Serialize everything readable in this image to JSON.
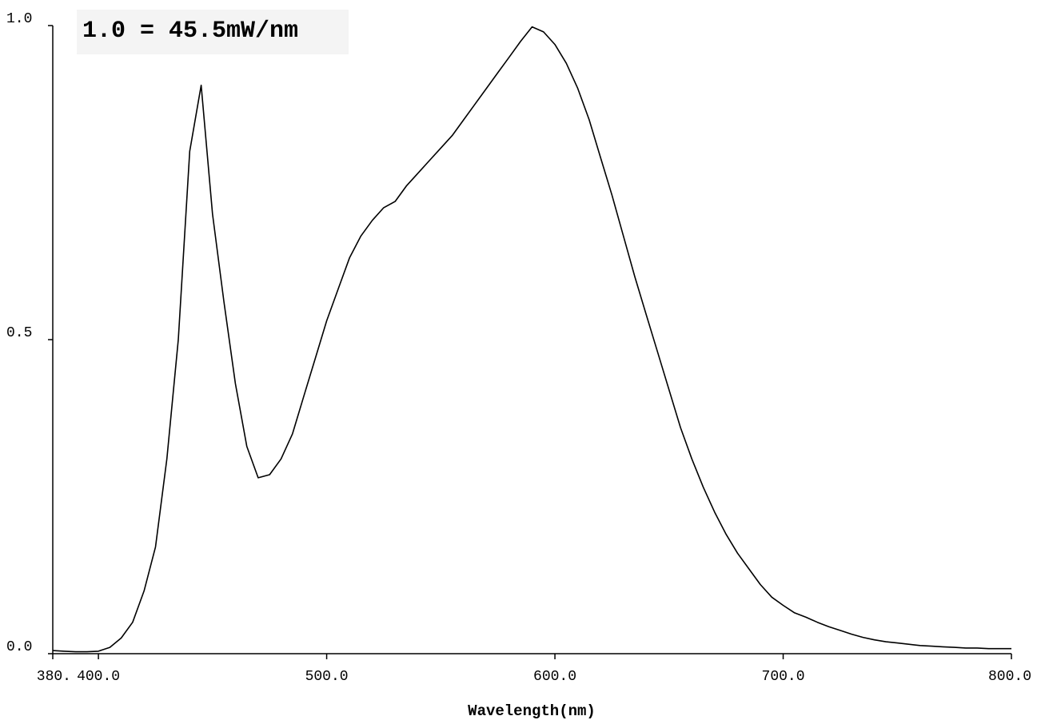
{
  "chart_data": {
    "type": "line",
    "title": "1.0 = 45.5mW/nm",
    "xlabel": "Wavelength(nm)",
    "ylabel": "",
    "xlim": [
      380,
      800
    ],
    "ylim": [
      0,
      1.0
    ],
    "grid": false,
    "x_ticks": [
      {
        "value": 380,
        "label": "380."
      },
      {
        "value": 400,
        "label": "400.0"
      },
      {
        "value": 500,
        "label": "500.0"
      },
      {
        "value": 600,
        "label": "600.0"
      },
      {
        "value": 700,
        "label": "700.0"
      },
      {
        "value": 800,
        "label": "800.0"
      }
    ],
    "y_ticks": [
      {
        "value": 0.0,
        "label": "0.0"
      },
      {
        "value": 0.5,
        "label": "0.5"
      },
      {
        "value": 1.0,
        "label": "1.0"
      }
    ],
    "series": [
      {
        "color": "#000000",
        "x": [
          380,
          385,
          390,
          395,
          400,
          405,
          410,
          415,
          420,
          425,
          430,
          435,
          440,
          445,
          450,
          455,
          460,
          465,
          470,
          475,
          480,
          485,
          490,
          495,
          500,
          505,
          510,
          515,
          520,
          525,
          530,
          535,
          540,
          545,
          550,
          555,
          560,
          565,
          570,
          575,
          580,
          585,
          590,
          595,
          600,
          605,
          610,
          615,
          620,
          625,
          630,
          635,
          640,
          645,
          650,
          655,
          660,
          665,
          670,
          675,
          680,
          685,
          690,
          695,
          700,
          705,
          710,
          715,
          720,
          725,
          730,
          735,
          740,
          745,
          750,
          755,
          760,
          765,
          770,
          775,
          780,
          785,
          790,
          795,
          800
        ],
        "y": [
          0.005,
          0.004,
          0.003,
          0.003,
          0.004,
          0.01,
          0.025,
          0.05,
          0.1,
          0.17,
          0.31,
          0.5,
          0.8,
          0.905,
          0.7,
          0.56,
          0.43,
          0.33,
          0.28,
          0.285,
          0.31,
          0.35,
          0.41,
          0.47,
          0.53,
          0.58,
          0.63,
          0.665,
          0.69,
          0.71,
          0.72,
          0.745,
          0.765,
          0.785,
          0.805,
          0.825,
          0.85,
          0.875,
          0.9,
          0.925,
          0.95,
          0.975,
          0.998,
          0.99,
          0.97,
          0.94,
          0.9,
          0.85,
          0.79,
          0.73,
          0.665,
          0.6,
          0.54,
          0.48,
          0.42,
          0.36,
          0.31,
          0.265,
          0.225,
          0.19,
          0.16,
          0.135,
          0.11,
          0.09,
          0.077,
          0.065,
          0.058,
          0.05,
          0.043,
          0.037,
          0.031,
          0.026,
          0.022,
          0.019,
          0.017,
          0.015,
          0.013,
          0.012,
          0.011,
          0.01,
          0.009,
          0.009,
          0.008,
          0.008,
          0.008
        ]
      }
    ]
  }
}
